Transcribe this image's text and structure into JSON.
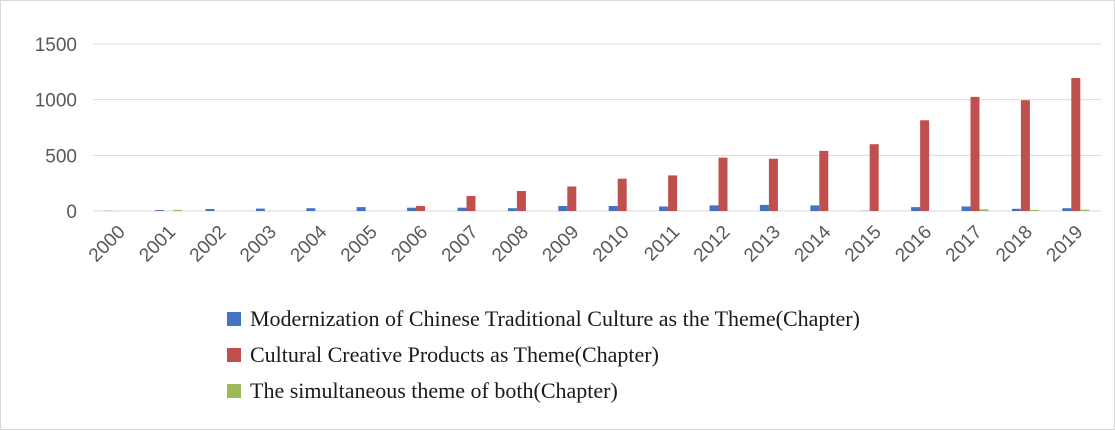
{
  "chart_data": {
    "type": "bar",
    "categories": [
      "2000",
      "2001",
      "2002",
      "2003",
      "2004",
      "2005",
      "2006",
      "2007",
      "2008",
      "2009",
      "2010",
      "2011",
      "2012",
      "2013",
      "2014",
      "2015",
      "2016",
      "2017",
      "2018",
      "2019"
    ],
    "series": [
      {
        "name": "Modernization of Chinese Traditional Culture as the Theme(Chapter)",
        "color": "#4472c4",
        "values": [
          2,
          8,
          18,
          22,
          25,
          35,
          30,
          30,
          25,
          45,
          45,
          40,
          50,
          55,
          50,
          2,
          35,
          40,
          20,
          25
        ]
      },
      {
        "name": "Cultural Creative Products as Theme(Chapter)",
        "color": "#c0504d",
        "values": [
          0,
          0,
          0,
          0,
          0,
          0,
          45,
          135,
          180,
          220,
          290,
          320,
          480,
          470,
          540,
          600,
          815,
          1025,
          995,
          1195
        ]
      },
      {
        "name": "The simultaneous theme of both(Chapter)",
        "color": "#9bbb59",
        "values": [
          0,
          10,
          0,
          0,
          0,
          0,
          0,
          0,
          0,
          0,
          0,
          0,
          0,
          0,
          0,
          0,
          0,
          15,
          10,
          12
        ]
      }
    ],
    "ylim": [
      0,
      1500
    ],
    "yticks": [
      "0",
      "500",
      "1000",
      "1500"
    ],
    "grid": true,
    "legend_position": "bottom"
  }
}
